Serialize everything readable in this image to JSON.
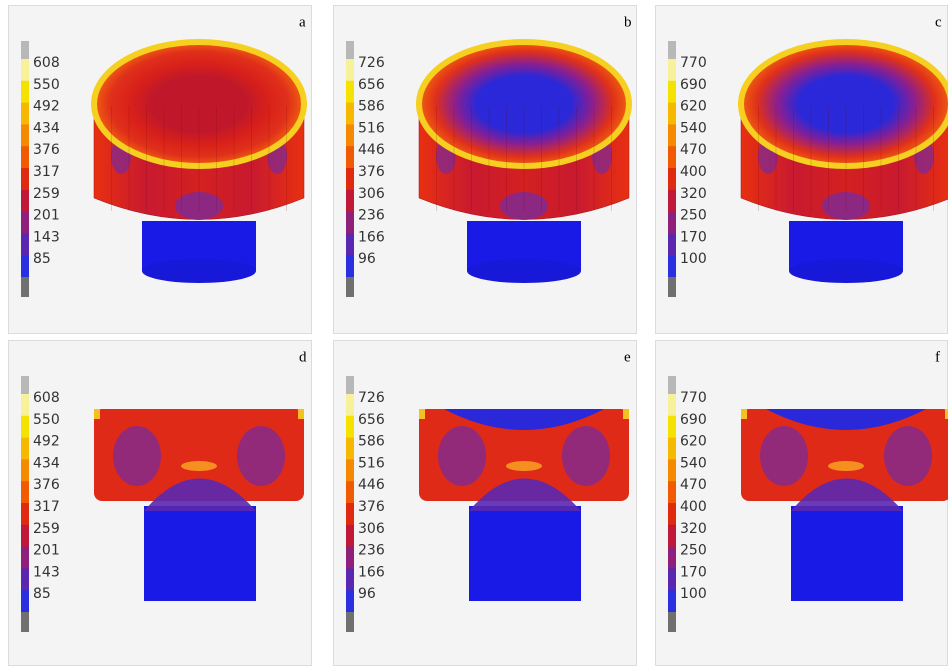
{
  "panels": [
    {
      "label": "a",
      "ticks": [
        608,
        550,
        492,
        434,
        376,
        317,
        259,
        201,
        143,
        85
      ]
    },
    {
      "label": "b",
      "ticks": [
        726,
        656,
        586,
        516,
        446,
        376,
        306,
        236,
        166,
        96
      ]
    },
    {
      "label": "c",
      "ticks": [
        770,
        690,
        620,
        540,
        470,
        400,
        320,
        250,
        170,
        100
      ]
    },
    {
      "label": "d",
      "ticks": [
        608,
        550,
        492,
        434,
        376,
        317,
        259,
        201,
        143,
        85
      ]
    },
    {
      "label": "e",
      "ticks": [
        726,
        656,
        586,
        516,
        446,
        376,
        306,
        236,
        166,
        96
      ]
    },
    {
      "label": "f",
      "ticks": [
        770,
        690,
        620,
        540,
        470,
        400,
        320,
        250,
        170,
        100
      ]
    }
  ]
}
